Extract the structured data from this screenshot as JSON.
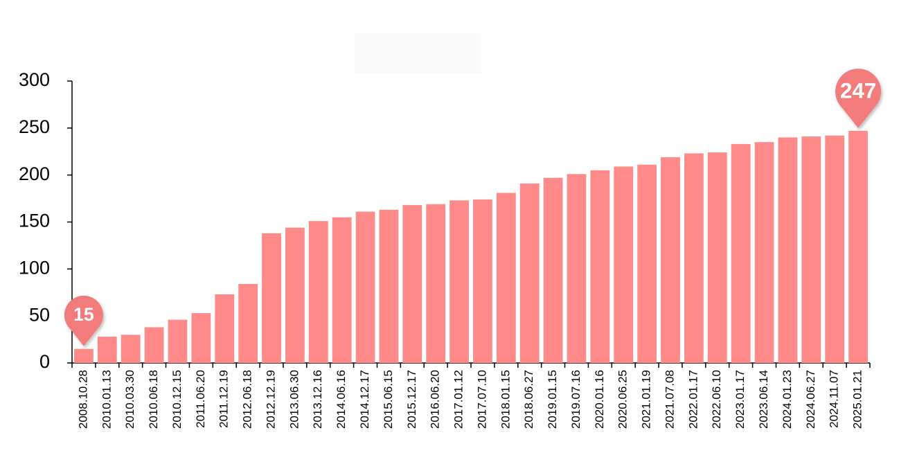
{
  "chart_data": {
    "type": "bar",
    "categories": [
      "2008.10.28",
      "2010.01.13",
      "2010.03.30",
      "2010.06.18",
      "2010.12.15",
      "2011.06.20",
      "2011.12.19",
      "2012.06.18",
      "2012.12.19",
      "2013.06.30",
      "2013.12.16",
      "2014.06.16",
      "2014.12.17",
      "2015.06.15",
      "2015.12.17",
      "2016.06.20",
      "2017.01.12",
      "2017.07.10",
      "2018.01.15",
      "2018.06.27",
      "2019.01.15",
      "2019.07.16",
      "2020.01.16",
      "2020.06.25",
      "2021.01.19",
      "2021.07.08",
      "2022.01.17",
      "2022.06.10",
      "2023.01.17",
      "2023.06.14",
      "2024.01.23",
      "2024.06.27",
      "2024.11.07",
      "2025.01.21"
    ],
    "values": [
      15,
      28,
      30,
      38,
      46,
      53,
      73,
      84,
      138,
      144,
      151,
      155,
      161,
      163,
      168,
      169,
      173,
      174,
      181,
      191,
      197,
      201,
      205,
      209,
      211,
      219,
      223,
      224,
      233,
      235,
      240,
      241,
      242,
      247
    ],
    "color": "#ff8a8a",
    "ylim": [
      0,
      300
    ],
    "yticks": [
      0,
      50,
      100,
      150,
      200,
      250,
      300
    ],
    "grid": false
  }
}
